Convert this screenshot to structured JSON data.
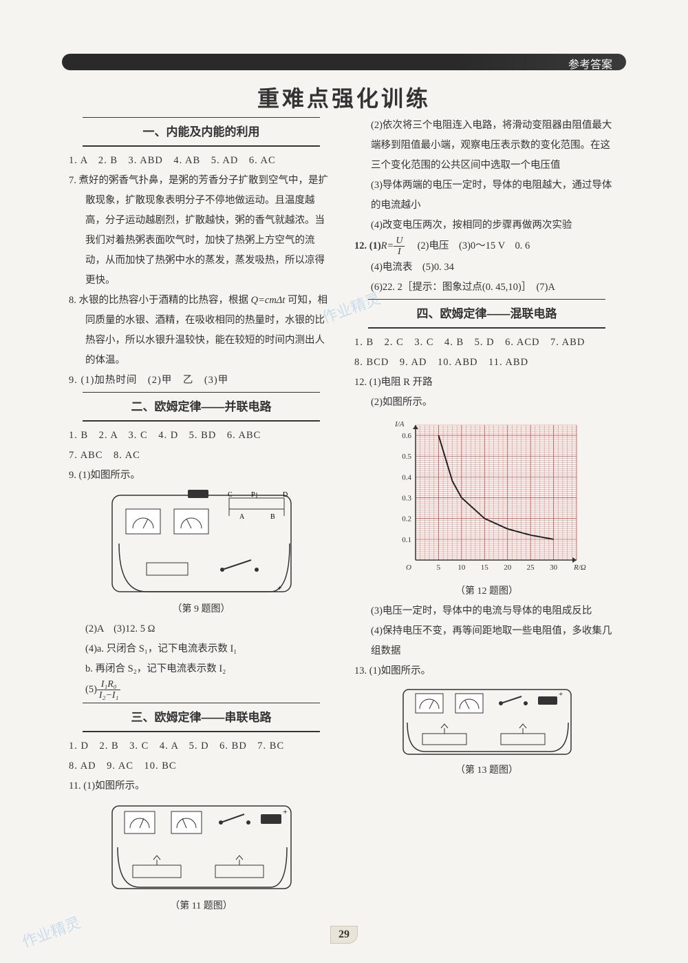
{
  "header": {
    "label": "参考答案"
  },
  "main_title": "重难点强化训练",
  "page_number": "29",
  "sections": [
    {
      "id": "s1",
      "title": "一、内能及内能的利用",
      "answers_line": "1. A　2. B　3. ABD　4. AB　5. AD　6. AC",
      "q7": "7. 煮好的粥香气扑鼻，是粥的芳香分子扩散到空气中，是扩散现象，扩散现象表明分子不停地做运动。且温度越高，分子运动越剧烈，扩散越快，粥的香气就越浓。当我们对着热粥表面吹气时，加快了热粥上方空气的流动，从而加快了热粥中水的蒸发，蒸发吸热，所以凉得更快。",
      "q8_pre": "8. 水银的比热容小于酒精的比热容，根据 ",
      "q8_formula": "Q=cmΔt",
      "q8_post": " 可知，相同质量的水银、酒精，在吸收相同的热量时，水银的比热容小，所以水银升温较快，能在较短的时间内测出人的体温。",
      "q9": "9. (1)加热时间　(2)甲　乙　(3)甲"
    },
    {
      "id": "s2",
      "title": "二、欧姆定律——并联电路",
      "answers_line1": "1. B　2. A　3. C　4. D　5. BD　6. ABC",
      "answers_line2": "7. ABC　8. AC",
      "q9_1": "9. (1)如图所示。",
      "fig9_caption": "（第 9 题图）",
      "q9_2": "(2)A　(3)12. 5 Ω",
      "q9_4": "(4)a. 只闭合 S₁，记下电流表示数 I₁",
      "q9_4b": "b. 再闭合 S₂，记下电流表示数 I₂",
      "q9_5_prefix": "(5)",
      "q9_5_num": "I₁R₀",
      "q9_5_den": "I₂−I₁"
    },
    {
      "id": "s3",
      "title": "三、欧姆定律——串联电路",
      "answers_line1": "1. D　2. B　3. C　4. A　5. D　6. BD　7. BC",
      "answers_line2": "8. AD　9. AC　10. BC",
      "q11_1": "11. (1)如图所示。",
      "fig11_caption": "（第 11 题图）",
      "q11_2": "(2)依次将三个电阻连入电路，将滑动变阻器由阻值最大端移到阻值最小端，观察电压表示数的变化范围。在这三个变化范围的公共区间中选取一个电压值",
      "q11_3": "(3)导体两端的电压一定时，导体的电阻越大，通过导体的电流越小",
      "q11_4": "(4)改变电压两次，按相同的步骤再做两次实验",
      "q12_1_pre": "12. (1)",
      "q12_1_num": "U",
      "q12_1_den": "I",
      "q12_1_R": "R=",
      "q12_23": "(2)电压　(3)0～15 V　0. 6",
      "q12_45": "(4)电流表　(5)0. 34",
      "q12_6": "(6)22. 2［提示：图象过点(0. 45,10)］　(7)A"
    },
    {
      "id": "s4",
      "title": "四、欧姆定律——混联电路",
      "answers_line1": "1. B　2. C　3. C　4. B　5. D　6. ACD　7. ABD",
      "answers_line2": "8. BCD　9. AD　10. ABD　11. ABD",
      "q12_1": "12. (1)电阻 R 开路",
      "q12_2": "(2)如图所示。",
      "fig12_caption": "（第 12 题图）",
      "q12_3": "(3)电压一定时，导体中的电流与导体的电阻成反比",
      "q12_4": "(4)保持电压不变，再等间距地取一些电阻值，多收集几组数据",
      "q13_1": "13. (1)如图所示。",
      "fig13_caption": "（第 13 题图）"
    }
  ],
  "chart": {
    "type": "line",
    "xlabel": "R/Ω",
    "ylabel": "I/A",
    "xlim": [
      0,
      35
    ],
    "ylim": [
      0,
      0.65
    ],
    "xticks": [
      5,
      10,
      15,
      20,
      25,
      30
    ],
    "yticks": [
      0.1,
      0.2,
      0.3,
      0.4,
      0.5,
      0.6
    ],
    "grid_color": "#d04848",
    "line_color": "#222222",
    "background_color": "#ffffff",
    "points": [
      {
        "x": 5,
        "y": 0.6
      },
      {
        "x": 8,
        "y": 0.38
      },
      {
        "x": 10,
        "y": 0.3
      },
      {
        "x": 15,
        "y": 0.2
      },
      {
        "x": 20,
        "y": 0.15
      },
      {
        "x": 25,
        "y": 0.12
      },
      {
        "x": 30,
        "y": 0.1
      }
    ]
  }
}
